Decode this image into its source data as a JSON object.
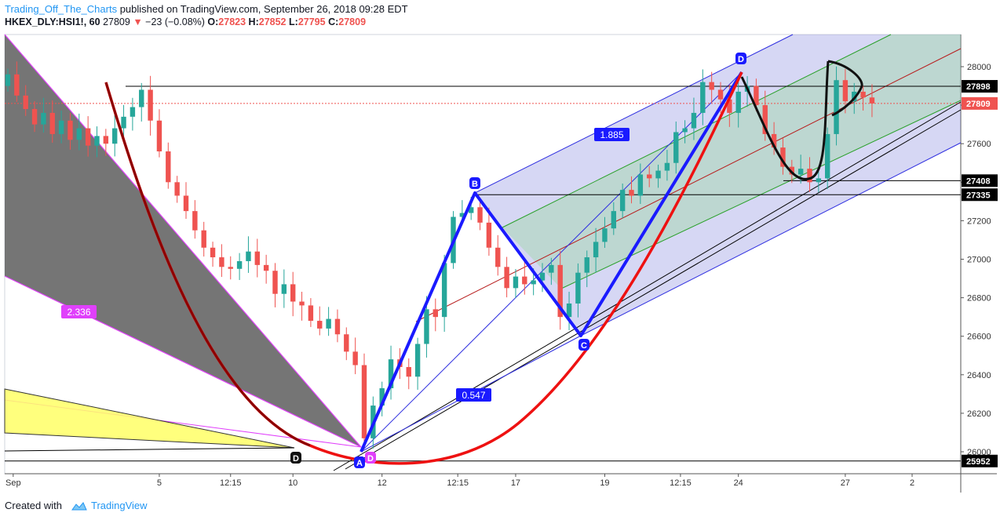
{
  "header": {
    "author": "Trading_Off_The_Charts",
    "published": "published on TradingView.com, September 26, 2018 09:28 EDT",
    "symbol": "HKEX_DLY:HSI1!, 60",
    "last": "27809",
    "change_arrow": "▼",
    "change": "−23 (−0.08%)",
    "ohlc": {
      "o_label": "O:",
      "o": "27823",
      "h_label": "H:",
      "h": "27852",
      "l_label": "L:",
      "l": "27795",
      "c_label": "C:",
      "c": "27809"
    }
  },
  "footer": {
    "created_with": "Created with",
    "brand": "TradingView",
    "icon": "tradingview-cloud-icon"
  },
  "chart_data": {
    "type": "candlestick",
    "ylim": [
      25880,
      29200
    ],
    "y_ticks": [
      26000,
      26200,
      26400,
      26600,
      26800,
      27000,
      27200,
      27400,
      27600,
      27800,
      28000
    ],
    "x_ticks": [
      {
        "label": "Sep",
        "bar": 0.6
      },
      {
        "label": "5",
        "bar": 17
      },
      {
        "label": "12:15",
        "bar": 25
      },
      {
        "label": "10",
        "bar": 32
      },
      {
        "label": "12",
        "bar": 42
      },
      {
        "label": "12:15",
        "bar": 50.5
      },
      {
        "label": "17",
        "bar": 57
      },
      {
        "label": "19",
        "bar": 67
      },
      {
        "label": "12:15",
        "bar": 75.5
      },
      {
        "label": "24",
        "bar": 82
      },
      {
        "label": "27",
        "bar": 94
      },
      {
        "label": "2",
        "bar": 101.5
      }
    ],
    "price_labels": [
      {
        "value": 27898,
        "text": "27898",
        "style": "line"
      },
      {
        "value": 27809,
        "text": "27809",
        "style": "current"
      },
      {
        "value": 27408,
        "text": "27408",
        "style": "line"
      },
      {
        "value": 27335,
        "text": "27335",
        "style": "line"
      },
      {
        "value": 25952,
        "text": "25952",
        "style": "line"
      }
    ],
    "closes": [
      27960,
      27850,
      27780,
      27700,
      27760,
      27650,
      27720,
      27620,
      27680,
      27590,
      27640,
      27600,
      27680,
      27740,
      27790,
      27880,
      27720,
      27560,
      27400,
      27330,
      27250,
      27150,
      27060,
      27010,
      26960,
      26950,
      26990,
      27040,
      26970,
      26940,
      26820,
      26870,
      26780,
      26760,
      26680,
      26640,
      26690,
      26610,
      26520,
      26450,
      26070,
      26240,
      26330,
      26480,
      26440,
      26390,
      26560,
      26740,
      26700,
      26980,
      27220,
      27240,
      27270,
      27190,
      27060,
      26960,
      26850,
      26910,
      26870,
      26890,
      26930,
      26970,
      26700,
      26770,
      26930,
      27010,
      27090,
      27160,
      27250,
      27360,
      27330,
      27440,
      27420,
      27460,
      27500,
      27660,
      27680,
      27760,
      27920,
      27880,
      27830,
      27760,
      27870,
      27900,
      27800,
      27650,
      27580,
      27480,
      27440,
      27470,
      27400,
      27420,
      27650,
      27930,
      27820,
      27870,
      27840,
      27809
    ],
    "patterns": [
      {
        "type": "abcd",
        "points": [
          "A",
          "B",
          "C",
          "D"
        ],
        "ratios": [
          "1.885",
          "0.547"
        ]
      },
      {
        "type": "fib-fan",
        "ratio": "2.336",
        "point": "D"
      },
      {
        "type": "pitchfork-channel"
      },
      {
        "type": "cup-curve"
      }
    ]
  }
}
